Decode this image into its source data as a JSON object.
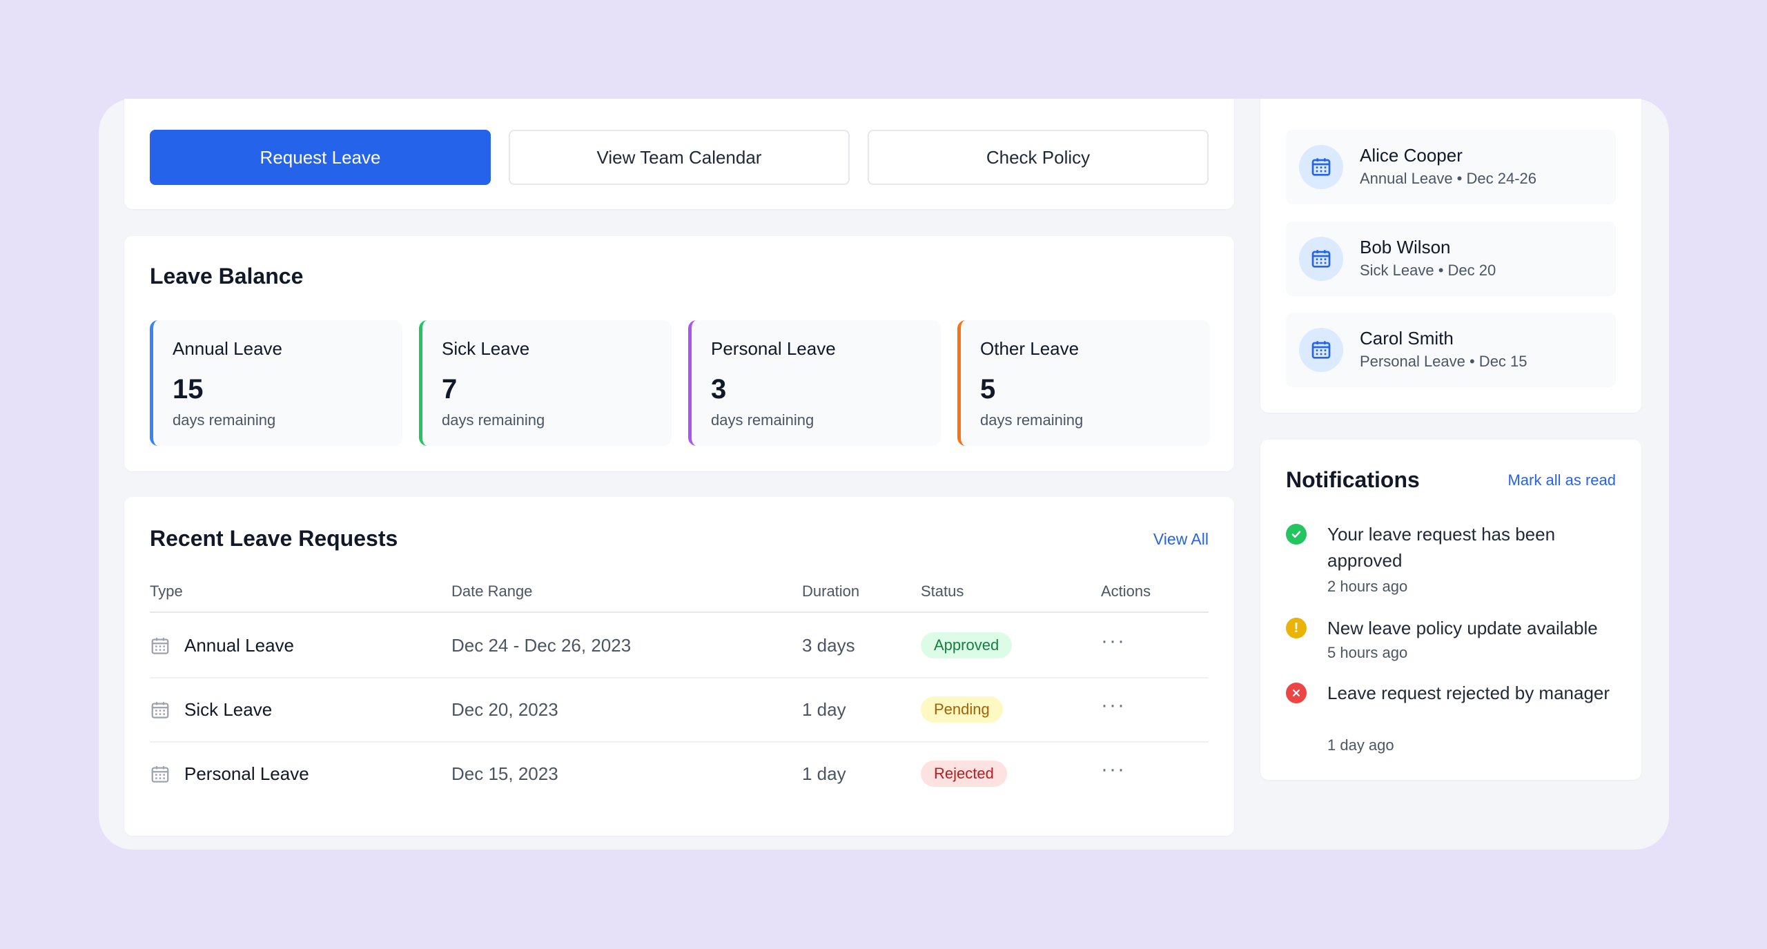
{
  "actions": {
    "request_leave": "Request Leave",
    "view_team_calendar": "View Team Calendar",
    "check_policy": "Check Policy"
  },
  "balance": {
    "title": "Leave Balance",
    "items": [
      {
        "label": "Annual Leave",
        "value": "15",
        "sub": "days remaining",
        "color": "#3b82f6"
      },
      {
        "label": "Sick Leave",
        "value": "7",
        "sub": "days remaining",
        "color": "#22c55e"
      },
      {
        "label": "Personal Leave",
        "value": "3",
        "sub": "days remaining",
        "color": "#a855f7"
      },
      {
        "label": "Other Leave",
        "value": "5",
        "sub": "days remaining",
        "color": "#f97316"
      }
    ]
  },
  "requests": {
    "title": "Recent Leave Requests",
    "view_all": "View All",
    "columns": [
      "Type",
      "Date Range",
      "Duration",
      "Status",
      "Actions"
    ],
    "rows": [
      {
        "type": "Annual Leave",
        "date_range": "Dec 24 - Dec 26, 2023",
        "duration": "3 days",
        "status": "Approved",
        "actions": "···"
      },
      {
        "type": "Sick Leave",
        "date_range": "Dec 20, 2023",
        "duration": "1 day",
        "status": "Pending",
        "actions": "···"
      },
      {
        "type": "Personal Leave",
        "date_range": "Dec 15, 2023",
        "duration": "1 day",
        "status": "Rejected",
        "actions": "···"
      }
    ]
  },
  "team_on_leave": [
    {
      "name": "Alice Cooper",
      "detail": "Annual Leave • Dec 24-26",
      "icon": "calendar-icon"
    },
    {
      "name": "Bob Wilson",
      "detail": "Sick Leave • Dec 20",
      "icon": "calendar-icon"
    },
    {
      "name": "Carol Smith",
      "detail": "Personal Leave • Dec 15",
      "icon": "calendar-icon"
    }
  ],
  "notifications": {
    "title": "Notifications",
    "mark_all": "Mark all as read",
    "items": [
      {
        "text": "Your leave request has been approved",
        "time": "2 hours ago",
        "icon": "check-circle-icon",
        "color": "#22c55e"
      },
      {
        "text": "New leave policy update available",
        "time": "5 hours ago",
        "icon": "alert-circle-icon",
        "color": "#eab308"
      },
      {
        "text": "Leave request rejected by manager",
        "time": "1 day ago",
        "icon": "x-circle-icon",
        "color": "#ef4444"
      }
    ]
  },
  "colors": {
    "primary": "#2563eb",
    "background": "#e6e0f8",
    "approved": "#15803d",
    "pending": "#a16207",
    "rejected": "#b91c1c"
  }
}
